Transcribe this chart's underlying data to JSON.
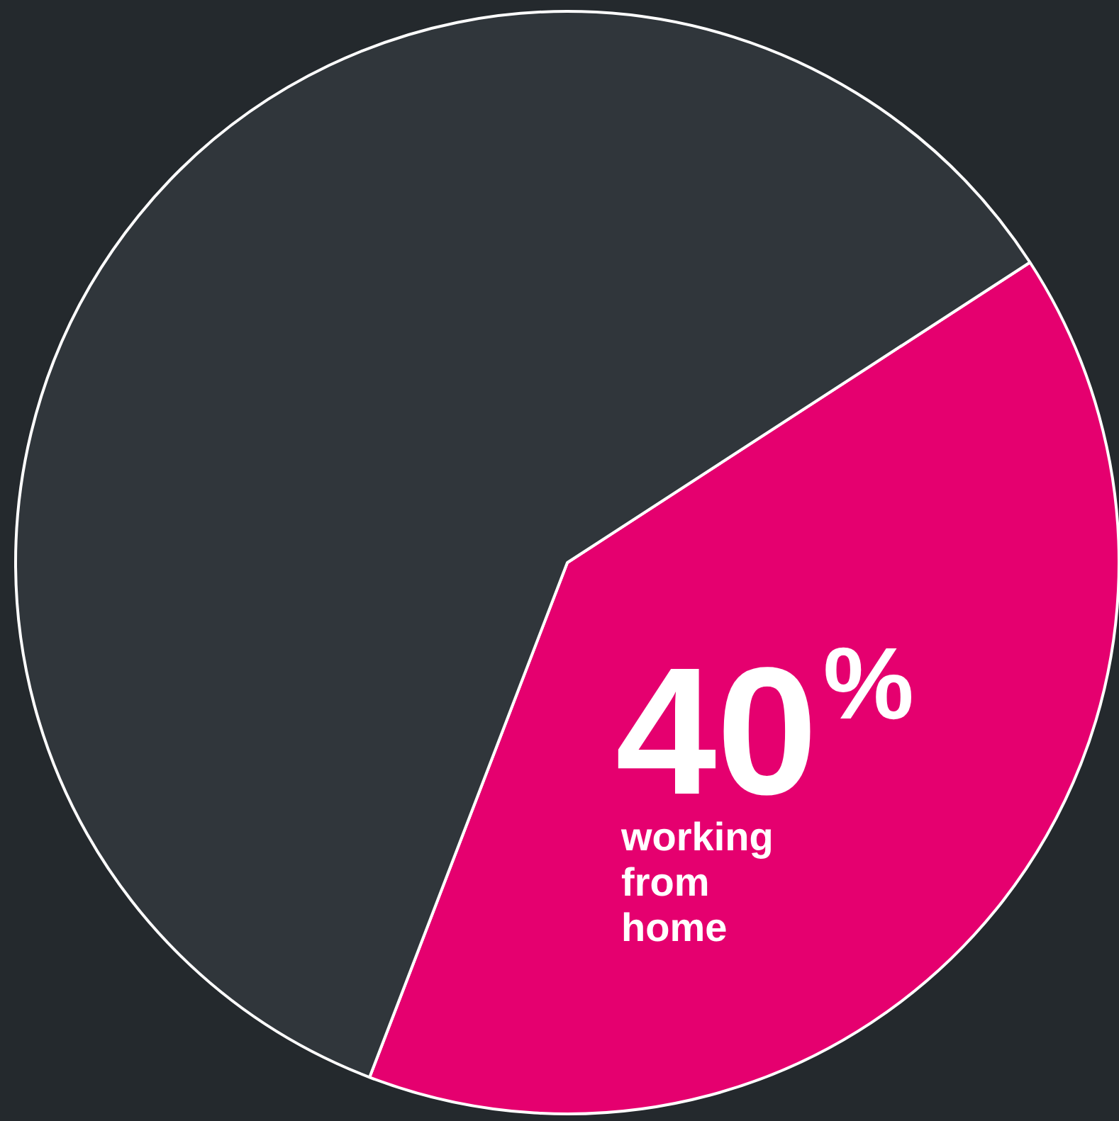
{
  "chart_data": {
    "type": "pie",
    "categories": [
      "working from home",
      null
    ],
    "values": [
      40,
      60
    ],
    "colors": [
      "#e5006f",
      "#30363b"
    ],
    "value_labels": [
      "40%",
      null
    ],
    "legend": false
  }
}
